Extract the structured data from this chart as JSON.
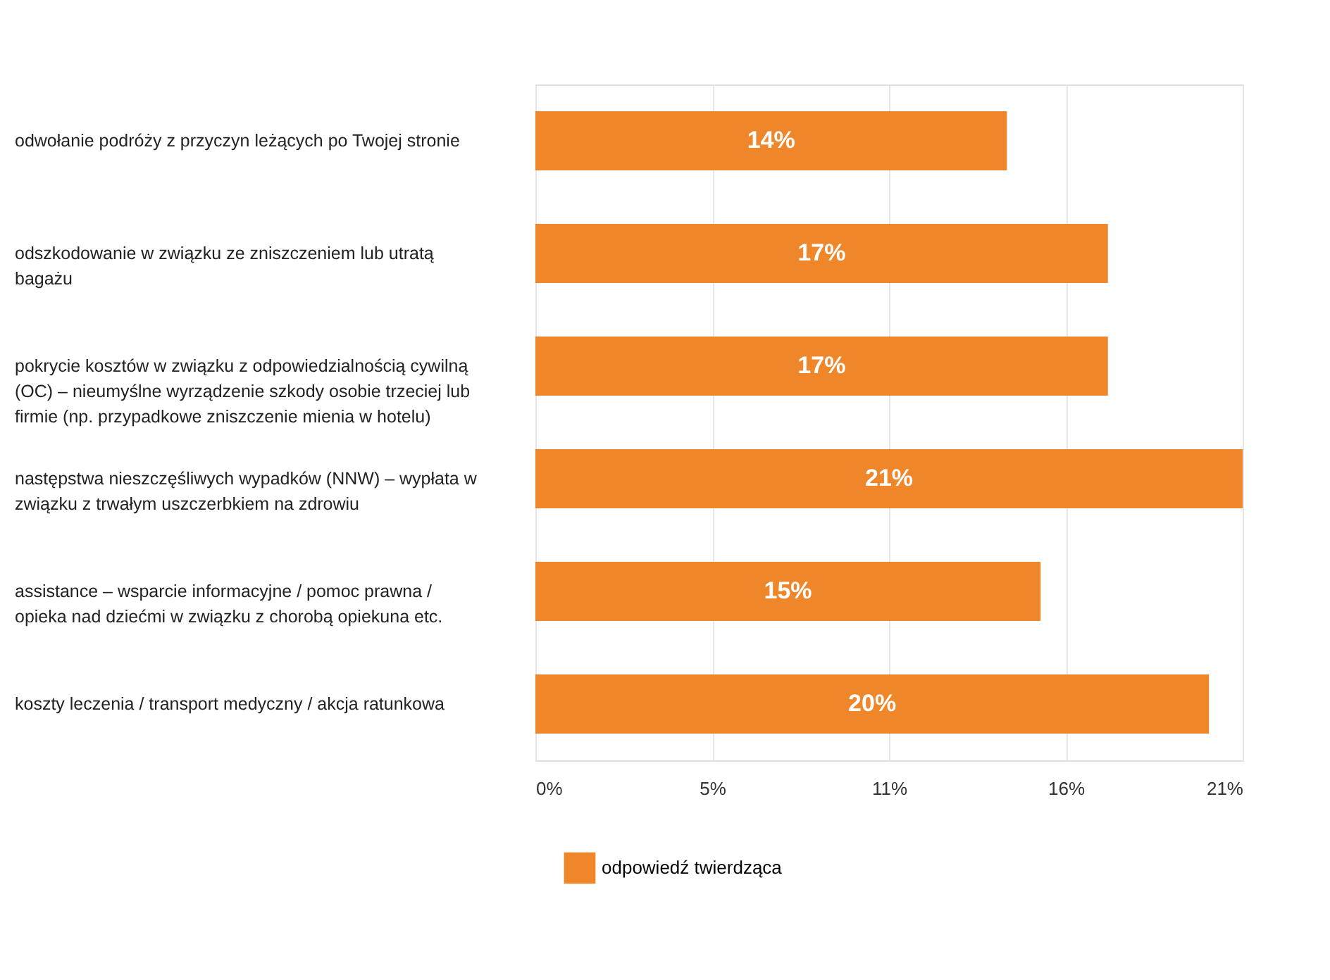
{
  "chart_data": {
    "type": "bar",
    "orientation": "horizontal",
    "categories": [
      "odwołanie podróży z przyczyn leżących po Twojej stronie",
      "odszkodowanie w związku ze zniszczeniem lub utratą bagażu",
      "pokrycie kosztów w związku z odpowiedzialnością cywilną (OC) – nieumyślne wyrządzenie szkody osobie trzeciej lub firmie (np. przypadkowe zniszczenie mienia w hotelu)",
      "następstwa nieszczęśliwych wypadków (NNW) – wypłata w związku z trwałym uszczerbkiem na zdrowiu",
      "assistance – wsparcie informacyjne / pomoc prawna / opieka nad dziećmi w związku z chorobą opiekuna etc.",
      "koszty leczenia / transport medyczny / akcja ratunkowa"
    ],
    "series": [
      {
        "name": "odpowiedź twierdząca",
        "color": "#f0862a",
        "values": [
          14,
          17,
          17,
          21,
          15,
          20
        ]
      }
    ],
    "value_labels": [
      "14%",
      "17%",
      "17%",
      "21%",
      "15%",
      "20%"
    ],
    "xlim": [
      0,
      21
    ],
    "xticks": [
      {
        "value": 0,
        "label": "0%"
      },
      {
        "value": 5.25,
        "label": "5%"
      },
      {
        "value": 10.5,
        "label": "11%"
      },
      {
        "value": 15.75,
        "label": "16%"
      },
      {
        "value": 21,
        "label": "21%"
      }
    ],
    "grid": "x",
    "legend": "bottom"
  }
}
